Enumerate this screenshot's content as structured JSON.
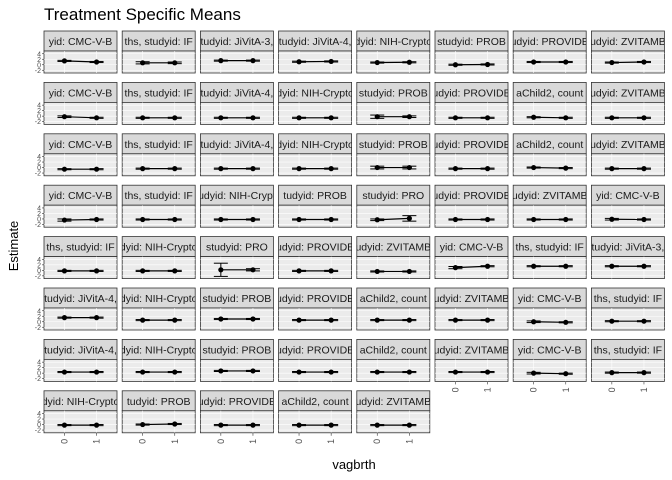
{
  "chart_data": {
    "type": "scatter",
    "title": "Treatment Specific Means",
    "xlabel": "vagbrth",
    "ylabel": "Estimate",
    "x_categories": [
      "0",
      "1"
    ],
    "y_tick_labels": [
      "4",
      "2",
      "0",
      "-2"
    ],
    "ylim": [
      -3,
      5
    ],
    "grid": true,
    "legend": "none",
    "facet_grid": {
      "columns": 8,
      "rows": 8
    },
    "panels": [
      {
        "strip": "yid: CMC-V-B",
        "est": [
          1.4,
          1.0
        ],
        "lo": [
          1.2,
          0.8
        ],
        "hi": [
          1.6,
          1.2
        ]
      },
      {
        "strip": "ths, studyid: IF",
        "est": [
          0.7,
          0.7
        ],
        "lo": [
          0.3,
          0.4
        ],
        "hi": [
          1.1,
          1.0
        ]
      },
      {
        "strip": "tudyid: JiVitA-3,",
        "est": [
          1.5,
          1.5
        ],
        "lo": [
          1.3,
          1.3
        ],
        "hi": [
          1.7,
          1.7
        ]
      },
      {
        "strip": "tudyid: JiVitA-4,",
        "est": [
          1.1,
          1.2
        ],
        "lo": [
          0.9,
          1.0
        ],
        "hi": [
          1.3,
          1.4
        ]
      },
      {
        "strip": "dyid: NIH-Crypto",
        "est": [
          0.8,
          0.9
        ],
        "lo": [
          0.6,
          0.7
        ],
        "hi": [
          1.0,
          1.1
        ]
      },
      {
        "strip": "studyid: PROB",
        "est": [
          0.0,
          0.1
        ],
        "lo": [
          -0.2,
          -0.1
        ],
        "hi": [
          0.2,
          0.3
        ]
      },
      {
        "strip": "udyid: PROVIDE",
        "est": [
          1.0,
          1.0
        ],
        "lo": [
          0.8,
          0.8
        ],
        "hi": [
          1.2,
          1.2
        ]
      },
      {
        "strip": "udyid: ZVITAMB",
        "est": [
          0.8,
          1.0
        ],
        "lo": [
          0.6,
          0.8
        ],
        "hi": [
          1.0,
          1.2
        ]
      },
      {
        "strip": "yid: CMC-V-B",
        "est": [
          -0.2,
          -0.6
        ],
        "lo": [
          -0.5,
          -0.8
        ],
        "hi": [
          0.1,
          -0.4
        ]
      },
      {
        "strip": "ths, studyid: IF",
        "est": [
          -0.6,
          -0.6
        ],
        "lo": [
          -0.8,
          -0.8
        ],
        "hi": [
          -0.4,
          -0.4
        ]
      },
      {
        "strip": "tudyid: JiVitA-4,",
        "est": [
          -0.6,
          -0.6
        ],
        "lo": [
          -0.8,
          -0.8
        ],
        "hi": [
          -0.4,
          -0.4
        ]
      },
      {
        "strip": "dyid: NIH-Crypto",
        "est": [
          -0.6,
          -0.6
        ],
        "lo": [
          -0.8,
          -0.8
        ],
        "hi": [
          -0.4,
          -0.4
        ]
      },
      {
        "strip": "studyid: PROB",
        "est": [
          -0.2,
          -0.2
        ],
        "lo": [
          -0.8,
          -0.5
        ],
        "hi": [
          0.4,
          0.1
        ]
      },
      {
        "strip": "udyid: PROVIDE",
        "est": [
          -0.6,
          -0.6
        ],
        "lo": [
          -0.8,
          -0.8
        ],
        "hi": [
          -0.4,
          -0.4
        ]
      },
      {
        "strip": "aChild2, count",
        "est": [
          -0.4,
          -0.6
        ],
        "lo": [
          -0.6,
          -0.8
        ],
        "hi": [
          -0.2,
          -0.4
        ]
      },
      {
        "strip": "udyid: ZVITAMB",
        "est": [
          -0.6,
          -0.6
        ],
        "lo": [
          -0.8,
          -0.8
        ],
        "hi": [
          -0.4,
          -0.4
        ]
      },
      {
        "strip": "yid: CMC-V-B",
        "est": [
          -0.6,
          -0.6
        ],
        "lo": [
          -0.8,
          -0.8
        ],
        "hi": [
          -0.4,
          -0.4
        ]
      },
      {
        "strip": "ths, studyid: IF",
        "est": [
          -0.4,
          -0.4
        ],
        "lo": [
          -0.6,
          -0.6
        ],
        "hi": [
          -0.2,
          -0.2
        ]
      },
      {
        "strip": "tudyid: JiVitA-4,",
        "est": [
          -0.4,
          -0.4
        ],
        "lo": [
          -0.6,
          -0.6
        ],
        "hi": [
          -0.2,
          -0.2
        ]
      },
      {
        "strip": "dyid: NIH-Crypto",
        "est": [
          -0.4,
          -0.4
        ],
        "lo": [
          -0.6,
          -0.6
        ],
        "hi": [
          -0.2,
          -0.2
        ]
      },
      {
        "strip": "studyid: PROB",
        "est": [
          0.0,
          0.0
        ],
        "lo": [
          -0.5,
          -0.5
        ],
        "hi": [
          0.5,
          0.5
        ]
      },
      {
        "strip": "udyid: PROVIDE",
        "est": [
          -0.4,
          -0.4
        ],
        "lo": [
          -0.6,
          -0.6
        ],
        "hi": [
          -0.2,
          -0.2
        ]
      },
      {
        "strip": "aChild2, count",
        "est": [
          0.0,
          -0.2
        ],
        "lo": [
          -0.2,
          -0.4
        ],
        "hi": [
          0.2,
          0.0
        ]
      },
      {
        "strip": "udyid: ZVITAMB",
        "est": [
          -0.4,
          -0.4
        ],
        "lo": [
          -0.6,
          -0.6
        ],
        "hi": [
          -0.2,
          -0.2
        ]
      },
      {
        "strip": "yid: CMC-V-B",
        "est": [
          -0.4,
          -0.2
        ],
        "lo": [
          -0.8,
          -0.4
        ],
        "hi": [
          0.0,
          0.0
        ]
      },
      {
        "strip": "ths, studyid: IF",
        "est": [
          -0.2,
          -0.2
        ],
        "lo": [
          -0.4,
          -0.4
        ],
        "hi": [
          0.0,
          0.0
        ]
      },
      {
        "strip": "udyid: NIH-Crypt",
        "est": [
          -0.2,
          -0.2
        ],
        "lo": [
          -0.4,
          -0.4
        ],
        "hi": [
          0.0,
          0.0
        ]
      },
      {
        "strip": "tudyid: PROB",
        "est": [
          -0.2,
          -0.2
        ],
        "lo": [
          -0.4,
          -0.4
        ],
        "hi": [
          0.0,
          0.0
        ]
      },
      {
        "strip": "studyid: PRO",
        "est": [
          -0.3,
          0.2
        ],
        "lo": [
          -0.6,
          -0.8
        ],
        "hi": [
          0.0,
          1.2
        ]
      },
      {
        "strip": "udyid: PROVIDE",
        "est": [
          -0.2,
          -0.2
        ],
        "lo": [
          -0.4,
          -0.4
        ],
        "hi": [
          0.0,
          0.0
        ]
      },
      {
        "strip": "udyid: ZVITAMB",
        "est": [
          -0.2,
          -0.2
        ],
        "lo": [
          -0.4,
          -0.4
        ],
        "hi": [
          0.0,
          0.0
        ]
      },
      {
        "strip": "yid: CMC-V-B",
        "est": [
          -0.1,
          -0.2
        ],
        "lo": [
          -0.4,
          -0.4
        ],
        "hi": [
          0.2,
          0.0
        ]
      },
      {
        "strip": "ths, studyid: IF",
        "est": [
          -0.2,
          -0.2
        ],
        "lo": [
          -0.4,
          -0.4
        ],
        "hi": [
          0.0,
          0.0
        ]
      },
      {
        "strip": "dyid: NIH-Crypto",
        "est": [
          -0.2,
          -0.2
        ],
        "lo": [
          -0.4,
          -0.4
        ],
        "hi": [
          0.0,
          0.0
        ]
      },
      {
        "strip": "studyid: PRO",
        "est": [
          0.2,
          0.2
        ],
        "lo": [
          -2.2,
          -0.2
        ],
        "hi": [
          2.6,
          0.6
        ]
      },
      {
        "strip": "udyid: PROVIDE",
        "est": [
          -0.2,
          -0.2
        ],
        "lo": [
          -0.4,
          -0.4
        ],
        "hi": [
          0.0,
          0.0
        ]
      },
      {
        "strip": "udyid: ZVITAMB",
        "est": [
          -0.4,
          -0.4
        ],
        "lo": [
          -0.6,
          -0.6
        ],
        "hi": [
          -0.2,
          -0.2
        ]
      },
      {
        "strip": "yid: CMC-V-B",
        "est": [
          1.0,
          1.5
        ],
        "lo": [
          0.6,
          1.3
        ],
        "hi": [
          1.4,
          1.7
        ]
      },
      {
        "strip": "ths, studyid: IF",
        "est": [
          1.5,
          1.5
        ],
        "lo": [
          1.3,
          1.3
        ],
        "hi": [
          1.7,
          1.7
        ]
      },
      {
        "strip": "tudyid: JiVitA-3,",
        "est": [
          1.5,
          1.5
        ],
        "lo": [
          1.3,
          1.3
        ],
        "hi": [
          1.7,
          1.7
        ]
      },
      {
        "strip": "tudyid: JiVitA-4,",
        "est": [
          1.5,
          1.5
        ],
        "lo": [
          1.3,
          1.3
        ],
        "hi": [
          1.7,
          1.7
        ]
      },
      {
        "strip": "dyid: NIH-Crypto",
        "est": [
          0.6,
          0.6
        ],
        "lo": [
          0.4,
          0.4
        ],
        "hi": [
          0.8,
          0.8
        ]
      },
      {
        "strip": "studyid: PROB",
        "est": [
          1.0,
          1.0
        ],
        "lo": [
          0.8,
          0.8
        ],
        "hi": [
          1.2,
          1.2
        ]
      },
      {
        "strip": "udyid: PROVIDE",
        "est": [
          0.6,
          0.6
        ],
        "lo": [
          0.4,
          0.4
        ],
        "hi": [
          0.8,
          0.8
        ]
      },
      {
        "strip": "aChild2, count",
        "est": [
          0.6,
          0.6
        ],
        "lo": [
          0.4,
          0.4
        ],
        "hi": [
          0.8,
          0.8
        ]
      },
      {
        "strip": "udyid: ZVITAMB",
        "est": [
          0.6,
          0.6
        ],
        "lo": [
          0.4,
          0.4
        ],
        "hi": [
          0.8,
          0.8
        ]
      },
      {
        "strip": "yid: CMC-V-B",
        "est": [
          0.0,
          -0.2
        ],
        "lo": [
          -0.3,
          -0.4
        ],
        "hi": [
          0.3,
          0.0
        ]
      },
      {
        "strip": "ths, studyid: IF",
        "est": [
          0.2,
          0.2
        ],
        "lo": [
          0.0,
          0.0
        ],
        "hi": [
          0.4,
          0.4
        ]
      },
      {
        "strip": "tudyid: JiVitA-4,",
        "est": [
          0.4,
          0.4
        ],
        "lo": [
          0.2,
          0.2
        ],
        "hi": [
          0.6,
          0.6
        ]
      },
      {
        "strip": "dyid: NIH-Crypto",
        "est": [
          0.4,
          0.4
        ],
        "lo": [
          0.2,
          0.2
        ],
        "hi": [
          0.6,
          0.6
        ]
      },
      {
        "strip": "studyid: PROB",
        "est": [
          0.8,
          0.8
        ],
        "lo": [
          0.6,
          0.6
        ],
        "hi": [
          1.0,
          1.0
        ]
      },
      {
        "strip": "udyid: PROVIDE",
        "est": [
          0.4,
          0.4
        ],
        "lo": [
          0.2,
          0.2
        ],
        "hi": [
          0.6,
          0.6
        ]
      },
      {
        "strip": "aChild2, count",
        "est": [
          0.4,
          0.4
        ],
        "lo": [
          0.2,
          0.2
        ],
        "hi": [
          0.6,
          0.6
        ]
      },
      {
        "strip": "udyid: ZVITAMB",
        "est": [
          0.4,
          0.4
        ],
        "lo": [
          0.2,
          0.2
        ],
        "hi": [
          0.6,
          0.6
        ]
      },
      {
        "strip": "yid: CMC-V-B",
        "est": [
          0.0,
          -0.2
        ],
        "lo": [
          -0.3,
          -0.4
        ],
        "hi": [
          0.3,
          0.0
        ]
      },
      {
        "strip": "ths, studyid: IF",
        "est": [
          0.2,
          0.2
        ],
        "lo": [
          0.0,
          0.0
        ],
        "hi": [
          0.4,
          0.4
        ]
      },
      {
        "strip": "dyid: NIH-Crypto",
        "est": [
          -0.2,
          -0.2
        ],
        "lo": [
          -0.4,
          -0.4
        ],
        "hi": [
          0.0,
          0.0
        ]
      },
      {
        "strip": "tudyid: PROB",
        "est": [
          0.0,
          0.2
        ],
        "lo": [
          -0.2,
          0.0
        ],
        "hi": [
          0.2,
          0.4
        ]
      },
      {
        "strip": "udyid: PROVIDE",
        "est": [
          -0.2,
          -0.2
        ],
        "lo": [
          -0.4,
          -0.4
        ],
        "hi": [
          0.0,
          0.0
        ]
      },
      {
        "strip": "aChild2, count",
        "est": [
          -0.2,
          -0.2
        ],
        "lo": [
          -0.4,
          -0.4
        ],
        "hi": [
          0.0,
          0.0
        ]
      },
      {
        "strip": "udyid: ZVITAMB",
        "est": [
          -0.2,
          -0.2
        ],
        "lo": [
          -0.4,
          -0.4
        ],
        "hi": [
          0.0,
          0.0
        ]
      }
    ]
  }
}
